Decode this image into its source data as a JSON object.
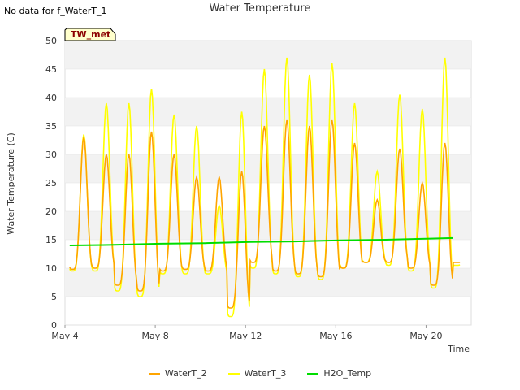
{
  "header": {
    "no_data_text": "No data for f_WaterT_1",
    "title": "Water Temperature"
  },
  "site_badge": "TW_met",
  "chart_data": {
    "type": "line",
    "title": "Water Temperature",
    "xlabel": "Time",
    "ylabel": "Water Temperature (C)",
    "xlim": [
      "2024-05-04",
      "2024-05-22"
    ],
    "ylim": [
      0,
      50
    ],
    "x_ticks": [
      "May 4",
      "May 8",
      "May 12",
      "May 16",
      "May 20"
    ],
    "y_ticks": [
      0,
      5,
      10,
      15,
      20,
      25,
      30,
      35,
      40,
      45,
      50
    ],
    "grid": "horizontal bands",
    "legend_position": "bottom",
    "series": [
      {
        "name": "WaterT_2",
        "color": "#FFA500",
        "daily": [
          {
            "date": "2024-05-04",
            "min": 9.8,
            "max": 33.0
          },
          {
            "date": "2024-05-05",
            "min": 10.0,
            "max": 30.0
          },
          {
            "date": "2024-05-06",
            "min": 7.0,
            "max": 30.0
          },
          {
            "date": "2024-05-07",
            "min": 6.0,
            "max": 34.0
          },
          {
            "date": "2024-05-08",
            "min": 9.5,
            "max": 30.0
          },
          {
            "date": "2024-05-09",
            "min": 9.8,
            "max": 26.0
          },
          {
            "date": "2024-05-10",
            "min": 9.5,
            "max": 26.0
          },
          {
            "date": "2024-05-11",
            "min": 3.0,
            "max": 27.0
          },
          {
            "date": "2024-05-12",
            "min": 11.0,
            "max": 35.0
          },
          {
            "date": "2024-05-13",
            "min": 9.5,
            "max": 36.0
          },
          {
            "date": "2024-05-14",
            "min": 9.0,
            "max": 35.0
          },
          {
            "date": "2024-05-15",
            "min": 8.5,
            "max": 36.0
          },
          {
            "date": "2024-05-16",
            "min": 10.0,
            "max": 32.0
          },
          {
            "date": "2024-05-17",
            "min": 11.0,
            "max": 22.0
          },
          {
            "date": "2024-05-18",
            "min": 11.0,
            "max": 31.0
          },
          {
            "date": "2024-05-19",
            "min": 10.0,
            "max": 25.0
          },
          {
            "date": "2024-05-20",
            "min": 7.0,
            "max": 32.0
          },
          {
            "date": "2024-05-21",
            "min": 11.0,
            "max": 11.5
          }
        ]
      },
      {
        "name": "WaterT_3",
        "color": "#FFFF00",
        "daily": [
          {
            "date": "2024-05-04",
            "min": 9.5,
            "max": 33.5
          },
          {
            "date": "2024-05-05",
            "min": 9.5,
            "max": 39.0
          },
          {
            "date": "2024-05-06",
            "min": 6.0,
            "max": 39.0
          },
          {
            "date": "2024-05-07",
            "min": 5.0,
            "max": 41.5
          },
          {
            "date": "2024-05-08",
            "min": 9.0,
            "max": 37.0
          },
          {
            "date": "2024-05-09",
            "min": 9.0,
            "max": 35.0
          },
          {
            "date": "2024-05-10",
            "min": 9.0,
            "max": 21.0
          },
          {
            "date": "2024-05-11",
            "min": 1.5,
            "max": 37.5
          },
          {
            "date": "2024-05-12",
            "min": 10.0,
            "max": 45.0
          },
          {
            "date": "2024-05-13",
            "min": 9.0,
            "max": 47.0
          },
          {
            "date": "2024-05-14",
            "min": 8.5,
            "max": 44.0
          },
          {
            "date": "2024-05-15",
            "min": 8.0,
            "max": 46.0
          },
          {
            "date": "2024-05-16",
            "min": 10.0,
            "max": 39.0
          },
          {
            "date": "2024-05-17",
            "min": 11.0,
            "max": 27.0
          },
          {
            "date": "2024-05-18",
            "min": 10.5,
            "max": 40.5
          },
          {
            "date": "2024-05-19",
            "min": 9.5,
            "max": 38.0
          },
          {
            "date": "2024-05-20",
            "min": 6.5,
            "max": 47.0
          },
          {
            "date": "2024-05-21",
            "min": 10.5,
            "max": 12.0
          }
        ]
      },
      {
        "name": "H2O_Temp",
        "color": "#00DD00",
        "points": [
          {
            "x": "2024-05-04",
            "y": 14.0
          },
          {
            "x": "2024-05-06",
            "y": 14.1
          },
          {
            "x": "2024-05-08",
            "y": 14.3
          },
          {
            "x": "2024-05-10",
            "y": 14.4
          },
          {
            "x": "2024-05-12",
            "y": 14.6
          },
          {
            "x": "2024-05-14",
            "y": 14.7
          },
          {
            "x": "2024-05-16",
            "y": 14.9
          },
          {
            "x": "2024-05-18",
            "y": 15.0
          },
          {
            "x": "2024-05-20",
            "y": 15.2
          },
          {
            "x": "2024-05-21",
            "y": 15.3
          }
        ]
      }
    ]
  }
}
